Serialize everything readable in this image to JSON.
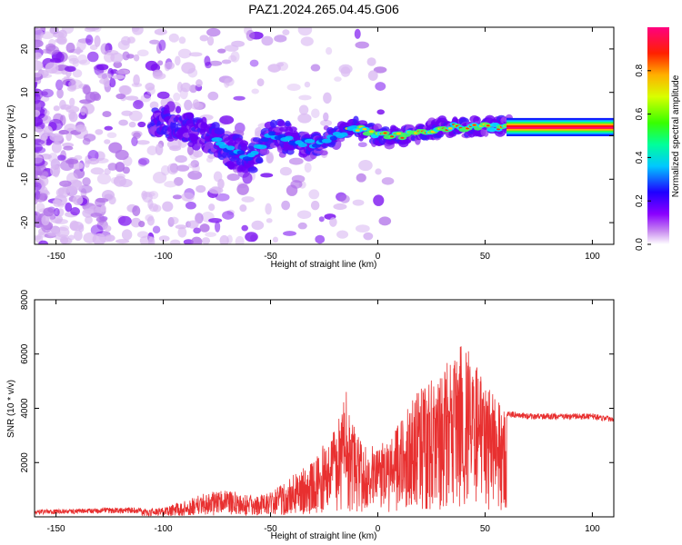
{
  "title": "PAZ1.2024.265.04.45.G06",
  "colors": {
    "snr_line": "#e83030",
    "frame": "#000000"
  },
  "chart_data": [
    {
      "type": "heatmap",
      "xlabel": "Height of straight line (km)",
      "ylabel": "Frequency (Hz)",
      "xlim": [
        -160,
        110
      ],
      "ylim": [
        -25,
        25
      ],
      "x_ticks": [
        -150,
        -100,
        -50,
        0,
        50,
        100
      ],
      "y_ticks": [
        -20,
        -10,
        0,
        10,
        20
      ],
      "colorbar": {
        "label": "Normalized spectral amplitude",
        "range": [
          0,
          1
        ],
        "ticks": [
          0.0,
          0.2,
          0.4,
          0.6,
          0.8
        ],
        "tick_labels": [
          "0.0",
          "0.2",
          "0.4",
          "0.6",
          "0.8"
        ],
        "colormap": "purple-blue-cyan-green-yellow-red-magenta"
      },
      "ridge": {
        "x": [
          -100,
          -90,
          -80,
          -70,
          -60,
          -50,
          -40,
          -30,
          -20,
          -10,
          0,
          10,
          20,
          30,
          40,
          50,
          60,
          110
        ],
        "y": [
          3,
          2,
          0,
          -3,
          -5,
          0,
          -1,
          -2,
          0,
          2,
          0,
          0,
          1,
          2,
          2,
          2,
          2,
          2
        ]
      }
    },
    {
      "type": "line",
      "xlabel": "Height of straight line (km)",
      "ylabel": "SNR (10 * v/v)",
      "xlim": [
        -160,
        110
      ],
      "ylim": [
        0,
        8000
      ],
      "x_ticks": [
        -150,
        -100,
        -50,
        0,
        50,
        100
      ],
      "y_ticks": [
        2000,
        4000,
        6000,
        8000
      ],
      "envelope": {
        "x": [
          -160,
          -110,
          -100,
          -90,
          -80,
          -70,
          -60,
          -50,
          -40,
          -30,
          -20,
          -15,
          -10,
          0,
          10,
          20,
          30,
          40,
          50,
          60,
          70,
          80,
          90,
          100,
          110
        ],
        "y": [
          200,
          280,
          350,
          600,
          900,
          1000,
          800,
          900,
          1500,
          2200,
          3200,
          4800,
          3000,
          2500,
          3500,
          4800,
          5500,
          6500,
          5000,
          3800,
          3700,
          3700,
          3700,
          3700,
          3600
        ]
      }
    }
  ]
}
